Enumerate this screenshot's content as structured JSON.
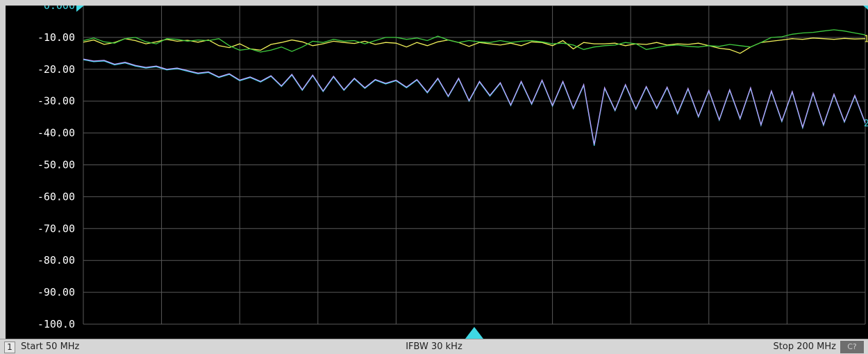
{
  "chart_data": {
    "type": "line",
    "x_start_mhz": 50,
    "x_stop_mhz": 200,
    "ylim": [
      -100,
      0
    ],
    "grid": true,
    "y_tick_labels": [
      "0.000",
      "-10.00",
      "-20.00",
      "-30.00",
      "-40.00",
      "-50.00",
      "-60.00",
      "-70.00",
      "-80.00",
      "-90.00",
      "-100.0"
    ],
    "reference_level": 0,
    "series": [
      {
        "color": "#f2f25a",
        "x": [
          50,
          52,
          54,
          56,
          58,
          60,
          62,
          64,
          66,
          68,
          70,
          72,
          74,
          76,
          78,
          80,
          82,
          84,
          86,
          88,
          90,
          92,
          94,
          96,
          98,
          100,
          102,
          104,
          106,
          108,
          110,
          112,
          114,
          116,
          118,
          120,
          122,
          124,
          126,
          128,
          130,
          132,
          134,
          136,
          138,
          140,
          142,
          144,
          146,
          148,
          150,
          152,
          154,
          156,
          158,
          160,
          162,
          164,
          166,
          168,
          170,
          172,
          174,
          176,
          178,
          180,
          182,
          184,
          186,
          188,
          190,
          192,
          194,
          196,
          198,
          200
        ],
        "values": [
          -11.5,
          -10.8,
          -12.2,
          -11.6,
          -10.4,
          -11.0,
          -12.0,
          -11.4,
          -10.6,
          -11.2,
          -10.9,
          -11.5,
          -10.8,
          -12.6,
          -13.2,
          -12.0,
          -13.6,
          -14.0,
          -12.2,
          -11.6,
          -10.8,
          -11.4,
          -12.6,
          -12.0,
          -11.2,
          -11.6,
          -11.9,
          -11.2,
          -12.2,
          -11.6,
          -11.8,
          -13.0,
          -11.6,
          -12.6,
          -11.4,
          -10.8,
          -11.6,
          -12.8,
          -11.6,
          -12.0,
          -12.4,
          -11.8,
          -12.6,
          -11.4,
          -11.6,
          -12.6,
          -11.0,
          -13.6,
          -11.6,
          -12.0,
          -12.0,
          -11.8,
          -12.6,
          -12.0,
          -12.2,
          -11.6,
          -12.4,
          -12.0,
          -12.2,
          -11.8,
          -12.6,
          -13.4,
          -13.8,
          -15.0,
          -13.0,
          -11.6,
          -11.2,
          -10.8,
          -10.4,
          -10.6,
          -10.2,
          -10.4,
          -10.6,
          -10.3,
          -10.5,
          -10.4
        ],
        "marker_label": "1"
      },
      {
        "color": "#3fcc3f",
        "x": [
          50,
          52,
          54,
          56,
          58,
          60,
          62,
          64,
          66,
          68,
          70,
          72,
          74,
          76,
          78,
          80,
          82,
          84,
          86,
          88,
          90,
          92,
          94,
          96,
          98,
          100,
          102,
          104,
          106,
          108,
          110,
          112,
          114,
          116,
          118,
          120,
          122,
          124,
          126,
          128,
          130,
          132,
          134,
          136,
          138,
          140,
          142,
          144,
          146,
          148,
          150,
          152,
          154,
          156,
          158,
          160,
          162,
          164,
          166,
          168,
          170,
          172,
          174,
          176,
          178,
          180,
          182,
          184,
          186,
          188,
          190,
          192,
          194,
          196,
          198,
          200
        ],
        "values": [
          -11.0,
          -10.2,
          -11.4,
          -11.8,
          -10.4,
          -10.0,
          -11.4,
          -12.0,
          -10.4,
          -10.6,
          -11.2,
          -10.8,
          -11.0,
          -10.4,
          -12.6,
          -14.0,
          -13.6,
          -14.6,
          -14.0,
          -13.0,
          -14.4,
          -13.0,
          -11.2,
          -11.6,
          -10.6,
          -11.2,
          -11.0,
          -12.0,
          -11.0,
          -10.0,
          -10.0,
          -10.6,
          -10.2,
          -11.0,
          -9.6,
          -10.8,
          -11.6,
          -11.0,
          -11.4,
          -11.6,
          -11.0,
          -11.6,
          -11.2,
          -11.0,
          -11.4,
          -12.0,
          -11.8,
          -12.4,
          -13.8,
          -13.0,
          -12.6,
          -12.4,
          -11.6,
          -12.0,
          -13.8,
          -13.2,
          -12.6,
          -12.4,
          -12.8,
          -13.0,
          -12.6,
          -12.8,
          -12.2,
          -12.6,
          -13.0,
          -11.6,
          -10.0,
          -9.8,
          -9.0,
          -8.6,
          -8.4,
          -8.0,
          -7.6,
          -8.0,
          -8.6,
          -9.2
        ],
        "marker_label": "1"
      },
      {
        "color": "#3fd8e4",
        "x": [
          50,
          52,
          54,
          56,
          58,
          60,
          62,
          64,
          66,
          68,
          70,
          72,
          74,
          76,
          78,
          80,
          82,
          84,
          86,
          88,
          90,
          92,
          94,
          96,
          98,
          100,
          102,
          104,
          106,
          108,
          110,
          112,
          114,
          116,
          118,
          120,
          122,
          124,
          126,
          128,
          130,
          132,
          134,
          136,
          138,
          140,
          142,
          144,
          146,
          148,
          150,
          152,
          154,
          156,
          158,
          160,
          162,
          164,
          166,
          168,
          170,
          172,
          174,
          176,
          178,
          180,
          182,
          184,
          186,
          188,
          190,
          192,
          194,
          196,
          198,
          200
        ],
        "values": [
          -17.0,
          -17.6,
          -17.4,
          -18.6,
          -18.0,
          -19.0,
          -19.6,
          -19.2,
          -20.2,
          -19.8,
          -20.6,
          -21.4,
          -21.0,
          -22.6,
          -21.6,
          -23.6,
          -22.6,
          -24.0,
          -22.2,
          -25.4,
          -21.8,
          -26.6,
          -22.0,
          -27.0,
          -22.4,
          -26.6,
          -23.0,
          -26.0,
          -23.4,
          -24.6,
          -23.6,
          -25.8,
          -23.4,
          -27.4,
          -23.0,
          -28.6,
          -23.0,
          -30.0,
          -24.0,
          -28.4,
          -24.4,
          -31.4,
          -24.0,
          -31.0,
          -23.6,
          -31.6,
          -24.0,
          -32.4,
          -25.0,
          -44.0,
          -26.0,
          -33.0,
          -25.0,
          -32.6,
          -25.6,
          -32.4,
          -25.8,
          -34.0,
          -26.2,
          -35.0,
          -26.8,
          -36.0,
          -26.6,
          -35.6,
          -26.0,
          -37.6,
          -27.0,
          -36.4,
          -27.2,
          -38.4,
          -27.6,
          -37.6,
          -28.0,
          -36.6,
          -28.4,
          -37.0
        ],
        "marker_label": "1"
      },
      {
        "color": "#b9a0ff",
        "x": [
          50,
          52,
          54,
          56,
          58,
          60,
          62,
          64,
          66,
          68,
          70,
          72,
          74,
          76,
          78,
          80,
          82,
          84,
          86,
          88,
          90,
          92,
          94,
          96,
          98,
          100,
          102,
          104,
          106,
          108,
          110,
          112,
          114,
          116,
          118,
          120,
          122,
          124,
          126,
          128,
          130,
          132,
          134,
          136,
          138,
          140,
          142,
          144,
          146,
          148,
          150,
          152,
          154,
          156,
          158,
          160,
          162,
          164,
          166,
          168,
          170,
          172,
          174,
          176,
          178,
          180,
          182,
          184,
          186,
          188,
          190,
          192,
          194,
          196,
          198,
          200
        ],
        "values": [
          -16.8,
          -17.4,
          -17.2,
          -18.4,
          -17.8,
          -18.8,
          -19.4,
          -19.0,
          -20.0,
          -19.6,
          -20.4,
          -21.2,
          -20.8,
          -22.4,
          -21.4,
          -23.4,
          -22.4,
          -23.8,
          -22.0,
          -25.2,
          -21.6,
          -26.4,
          -21.8,
          -26.8,
          -22.2,
          -26.4,
          -22.8,
          -25.8,
          -23.2,
          -24.4,
          -23.4,
          -25.6,
          -23.2,
          -27.2,
          -22.8,
          -28.4,
          -22.8,
          -29.8,
          -23.8,
          -28.2,
          -24.2,
          -31.2,
          -23.8,
          -30.8,
          -23.4,
          -31.4,
          -23.8,
          -32.2,
          -24.8,
          -43.6,
          -25.8,
          -32.8,
          -24.8,
          -32.4,
          -25.4,
          -32.2,
          -25.6,
          -33.8,
          -26.0,
          -34.8,
          -26.6,
          -35.8,
          -26.4,
          -35.4,
          -25.8,
          -37.4,
          -26.8,
          -36.2,
          -27.0,
          -38.2,
          -27.4,
          -37.4,
          -27.8,
          -36.4,
          -28.2,
          -36.8
        ]
      }
    ],
    "right_edge_labels": [
      "1",
      "2"
    ]
  },
  "status": {
    "channel": "1",
    "start": "Start 50 MHz",
    "ifbw": "IFBW 30 kHz",
    "stop": "Stop 200 MHz",
    "badge": "C?"
  },
  "colors": {
    "background": "#000000",
    "grid": "#5a5a5a",
    "axis_text": "#ffffff",
    "reference_marker": "#3fd8e4"
  }
}
